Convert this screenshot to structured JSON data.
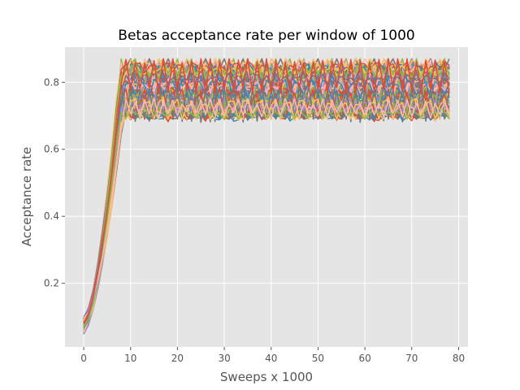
{
  "chart_data": {
    "type": "line",
    "title": "Betas acceptance rate per window of 1000",
    "xlabel": "Sweeps x 1000",
    "ylabel": "Acceptance rate",
    "xlim": [
      -4,
      82
    ],
    "ylim": [
      0.01,
      0.905
    ],
    "xticks": [
      0,
      10,
      20,
      30,
      40,
      50,
      60,
      70,
      80
    ],
    "yticks": [
      0.2,
      0.4,
      0.6,
      0.8
    ],
    "ytick_labels": [
      "0.2",
      "0.4",
      "0.6",
      "0.8"
    ],
    "grid": true,
    "background": "#e5e5e5",
    "x_range": [
      0,
      78
    ],
    "n_series": 120,
    "start_range": [
      0.05,
      0.1
    ],
    "plateau_range": [
      0.69,
      0.86
    ],
    "plateau_onset_x": 8,
    "colors": [
      "#e24a33",
      "#348abd",
      "#988ed5",
      "#777777",
      "#fbc15e",
      "#8eba42",
      "#ffb5b8"
    ]
  }
}
